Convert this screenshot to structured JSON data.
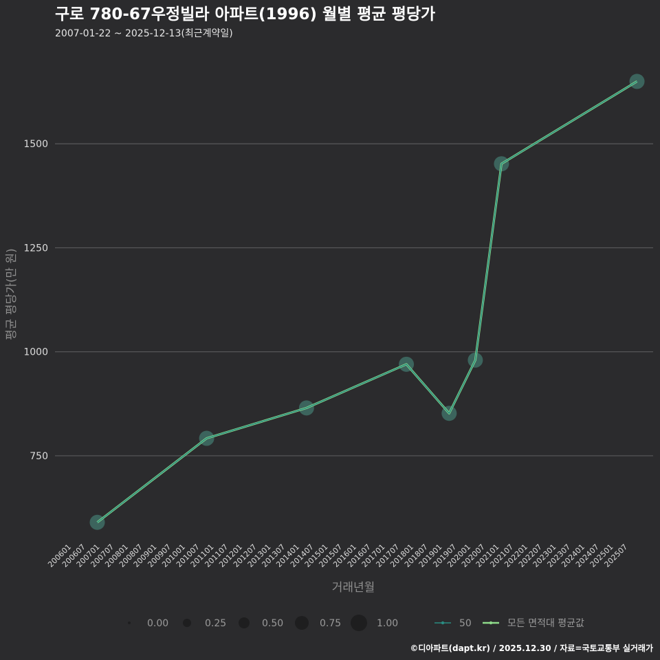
{
  "header": {
    "title": "구로 780-67우정빌라 아파트(1996) 월별 평균 평당가",
    "subtitle": "2007-01-22 ~ 2025-12-13(최근계약일)"
  },
  "credit": "©디아파트(dapt.kr) / 2025.12.30 / 자료=국토교통부 실거래가",
  "colors": {
    "background": "#2b2b2d",
    "grid": "#5a5a5c",
    "series_50": "#2a8c82",
    "series_avg": "#8edb8a",
    "marker": "#3f6e66"
  },
  "chart_data": {
    "type": "line",
    "title": "구로 780-67우정빌라 아파트(1996) 월별 평균 평당가",
    "xlabel": "거래년월",
    "ylabel": "평균 평당가(만 원)",
    "ylim": [
      540,
      1730
    ],
    "yticks": [
      750,
      1000,
      1250,
      1500
    ],
    "xlim": [
      "200601",
      "202601"
    ],
    "categories": [
      "200601",
      "200607",
      "200701",
      "200707",
      "200801",
      "200807",
      "200901",
      "200907",
      "201001",
      "201007",
      "201101",
      "201107",
      "201201",
      "201207",
      "201301",
      "201307",
      "201401",
      "201407",
      "201501",
      "201507",
      "201601",
      "201607",
      "201701",
      "201707",
      "201801",
      "201807",
      "201901",
      "201907",
      "202001",
      "202007",
      "202101",
      "202107",
      "202201",
      "202207",
      "202301",
      "202307",
      "202401",
      "202407",
      "202501",
      "202507"
    ],
    "series": [
      {
        "name": "50",
        "x": [
          "200701",
          "201011",
          "201405",
          "201711",
          "201905",
          "202004",
          "202103",
          "202512"
        ],
        "values": [
          590,
          792,
          865,
          970,
          852,
          980,
          1452,
          1650
        ]
      },
      {
        "name": "모든 면적대 평균값",
        "x": [
          "200701",
          "201011",
          "201405",
          "201711",
          "201905",
          "202004",
          "202103",
          "202512"
        ],
        "values": [
          590,
          792,
          865,
          970,
          852,
          980,
          1452,
          1650
        ]
      }
    ],
    "size_legend": {
      "values": [
        "0.00",
        "0.25",
        "0.50",
        "0.75",
        "1.00"
      ]
    },
    "grid": true,
    "legend_position": "bottom"
  }
}
